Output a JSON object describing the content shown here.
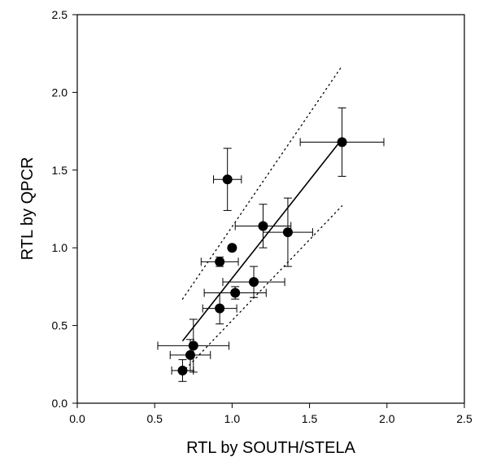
{
  "chart_data": {
    "type": "scatter",
    "title": "",
    "xlabel": "RTL by SOUTH/STELA",
    "ylabel": "RTL by QPCR",
    "xlim": [
      0.0,
      2.5
    ],
    "ylim": [
      0.0,
      2.5
    ],
    "xticks": [
      "0.0",
      "0.5",
      "1.0",
      "1.5",
      "2.0",
      "2.5"
    ],
    "yticks": [
      "0.0",
      "0.5",
      "1.0",
      "1.5",
      "2.0",
      "2.5"
    ],
    "grid": false,
    "legend": "none",
    "marker_color": "#000000",
    "points": [
      {
        "x": 0.68,
        "y": 0.21,
        "xerr": 0.07,
        "yerr": 0.07
      },
      {
        "x": 0.73,
        "y": 0.31,
        "xerr": 0.13,
        "yerr": 0.1
      },
      {
        "x": 0.75,
        "y": 0.37,
        "xerr": 0.23,
        "yerr": 0.17
      },
      {
        "x": 0.92,
        "y": 0.61,
        "xerr": 0.11,
        "yerr": 0.1
      },
      {
        "x": 0.92,
        "y": 0.91,
        "xerr": 0.12,
        "yerr": 0.03
      },
      {
        "x": 0.97,
        "y": 1.44,
        "xerr": 0.09,
        "yerr": 0.2
      },
      {
        "x": 1.0,
        "y": 1.0,
        "xerr": 0.0,
        "yerr": 0.0
      },
      {
        "x": 1.02,
        "y": 0.71,
        "xerr": 0.2,
        "yerr": 0.04
      },
      {
        "x": 1.14,
        "y": 0.78,
        "xerr": 0.2,
        "yerr": 0.1
      },
      {
        "x": 1.2,
        "y": 1.14,
        "xerr": 0.18,
        "yerr": 0.14
      },
      {
        "x": 1.36,
        "y": 1.1,
        "xerr": 0.16,
        "yerr": 0.22
      },
      {
        "x": 1.71,
        "y": 1.68,
        "xerr": 0.27,
        "yerr": 0.22
      }
    ],
    "regression_line": {
      "x": [
        0.68,
        1.71
      ],
      "y": [
        0.4,
        1.7
      ]
    },
    "confidence_band_upper": {
      "x": [
        0.68,
        1.71
      ],
      "y": [
        0.67,
        2.17
      ]
    },
    "confidence_band_lower": {
      "x": [
        0.68,
        1.71
      ],
      "y": [
        0.2,
        1.27
      ]
    }
  }
}
